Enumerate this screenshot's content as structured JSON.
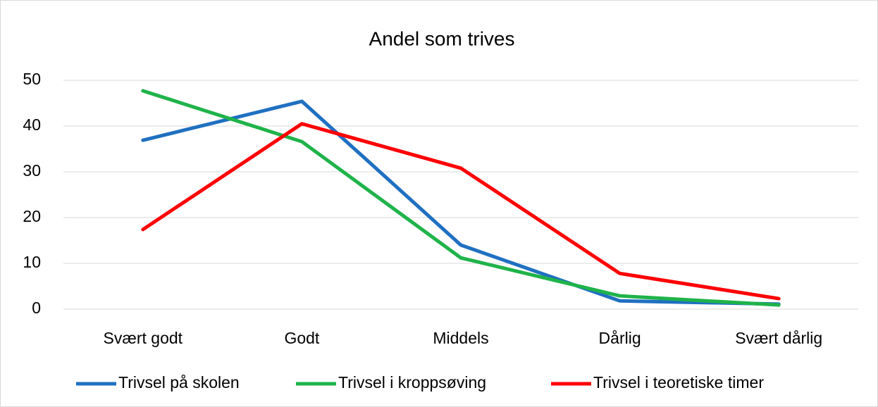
{
  "chart_data": {
    "type": "line",
    "title": "Andel som trives",
    "categories": [
      "Svært godt",
      "Godt",
      "Middels",
      "Dårlig",
      "Svært dårlig"
    ],
    "series": [
      {
        "name": "Trivsel på skolen",
        "color": "#1f70c1",
        "values": [
          36.9,
          45.4,
          14.0,
          1.8,
          1.1
        ]
      },
      {
        "name": "Trivsel i kroppsøving",
        "color": "#1fb34a",
        "values": [
          47.7,
          36.6,
          11.2,
          2.9,
          0.9
        ]
      },
      {
        "name": "Trivsel i teoretiske timer",
        "color": "#ff0000",
        "values": [
          17.4,
          40.5,
          30.8,
          7.8,
          2.3
        ]
      }
    ],
    "ylim": [
      0,
      50
    ],
    "yticks": [
      0,
      10,
      20,
      30,
      40,
      50
    ],
    "grid": true,
    "legend": "bottom"
  }
}
